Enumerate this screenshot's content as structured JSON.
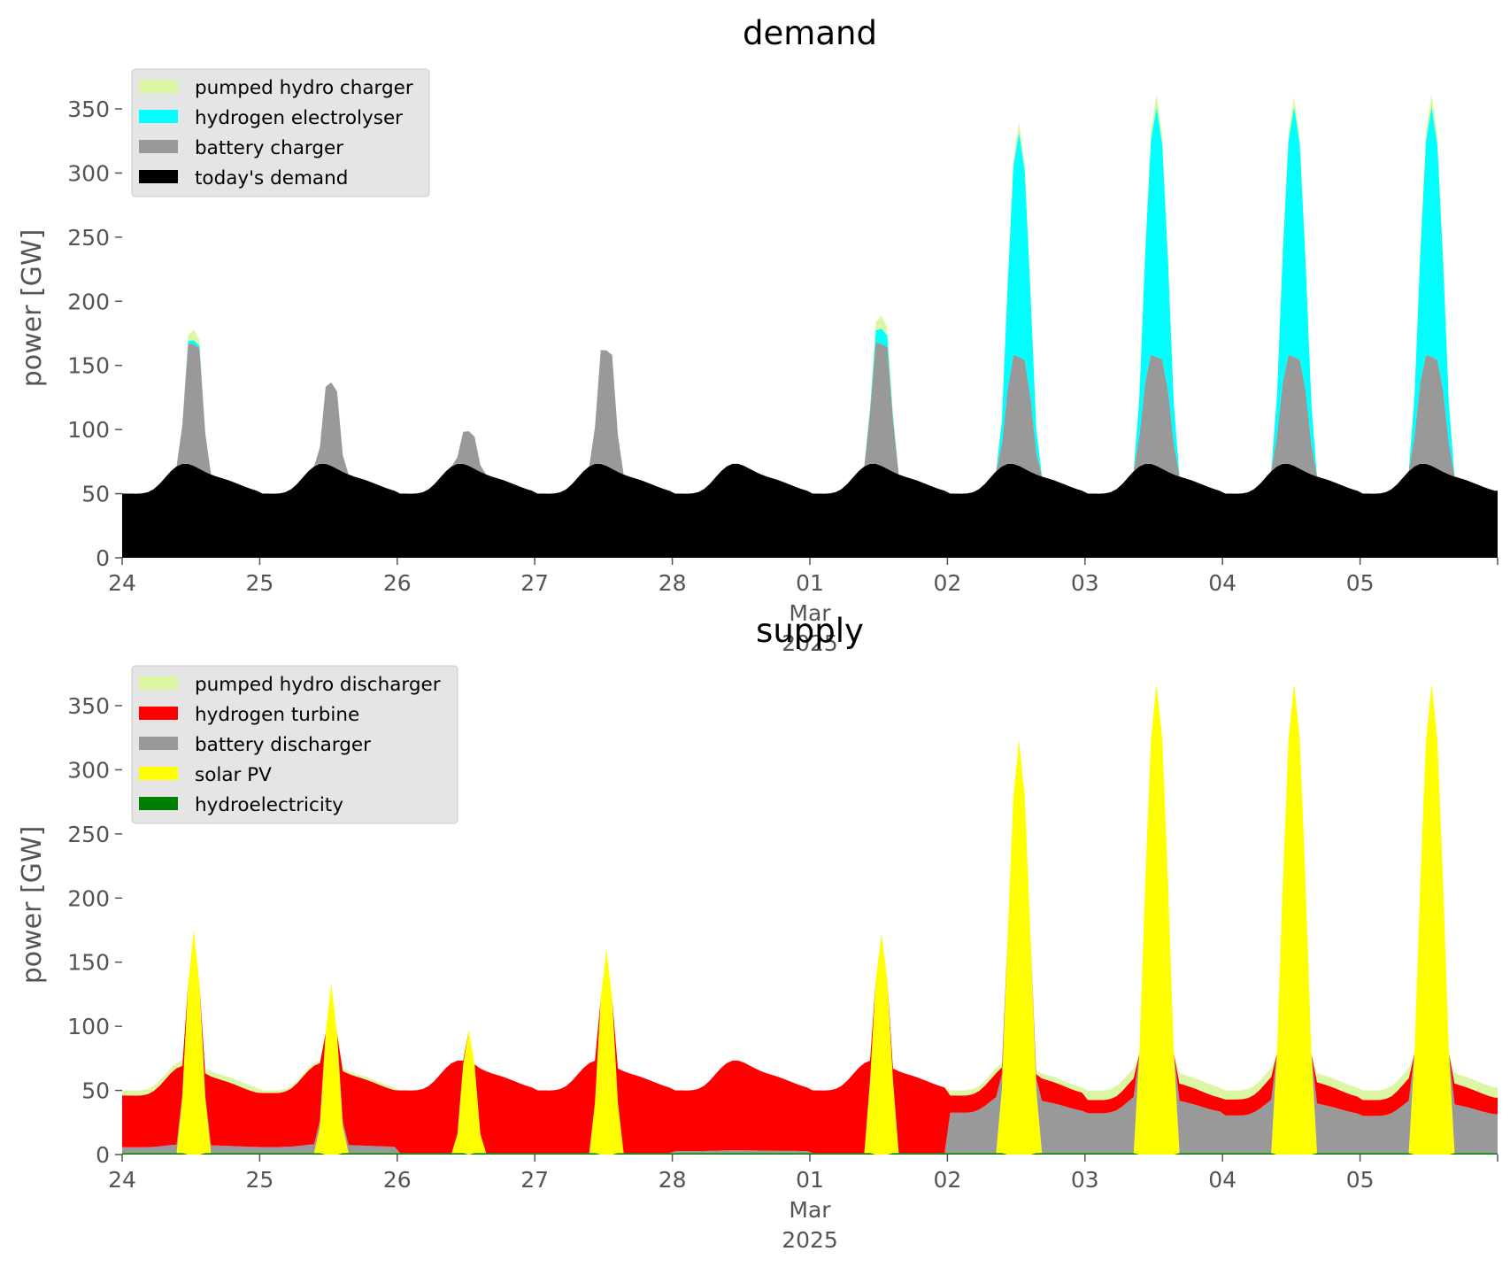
{
  "colors": {
    "pumped_hydro": "#dcf7a4",
    "hydrogen": "#00ffff",
    "battery": "#999999",
    "demand": "#000000",
    "turbine": "#ff0000",
    "solar": "#ffff00",
    "hydro": "#008000",
    "tick_text": "#555555",
    "legend_bg": "#e5e5e5"
  },
  "chart_data": [
    {
      "type": "area",
      "title": "demand",
      "ylabel": "power [GW]",
      "xlabel": "",
      "stacked": true,
      "ylim": [
        0,
        380
      ],
      "yticks": [
        0,
        50,
        100,
        150,
        200,
        250,
        300,
        350
      ],
      "xlim": [
        "2025-02-24T00:00",
        "2025-03-05T23:59"
      ],
      "xticks": [
        {
          "date": "2025-02-24",
          "label": "24"
        },
        {
          "date": "2025-02-25",
          "label": "25"
        },
        {
          "date": "2025-02-26",
          "label": "26"
        },
        {
          "date": "2025-02-27",
          "label": "27"
        },
        {
          "date": "2025-02-28",
          "label": "28"
        },
        {
          "date": "2025-03-01",
          "label": "01",
          "sublabels": [
            "Mar",
            "2025"
          ]
        },
        {
          "date": "2025-03-02",
          "label": "02"
        },
        {
          "date": "2025-03-03",
          "label": "03"
        },
        {
          "date": "2025-03-04",
          "label": "04"
        },
        {
          "date": "2025-03-05",
          "label": "05"
        }
      ],
      "legend_placement": "upper-left",
      "grid": false,
      "series": [
        {
          "name": "pumped hydro charger",
          "color": "#dcf7a4"
        },
        {
          "name": "hydrogen electrolyser",
          "color": "#00ffff"
        },
        {
          "name": "battery charger",
          "color": "#999999"
        },
        {
          "name": "today's demand",
          "color": "#000000"
        }
      ],
      "base_demand_profile": "diurnal GW curve, approx 48-73"
    },
    {
      "type": "area",
      "title": "supply",
      "ylabel": "power [GW]",
      "xlabel": "",
      "stacked": true,
      "ylim": [
        0,
        380
      ],
      "yticks": [
        0,
        50,
        100,
        150,
        200,
        250,
        300,
        350
      ],
      "xlim": [
        "2025-02-24T00:00",
        "2025-03-05T23:59"
      ],
      "xticks": [
        {
          "date": "2025-02-24",
          "label": "24"
        },
        {
          "date": "2025-02-25",
          "label": "25"
        },
        {
          "date": "2025-02-26",
          "label": "26"
        },
        {
          "date": "2025-02-27",
          "label": "27"
        },
        {
          "date": "2025-02-28",
          "label": "28"
        },
        {
          "date": "2025-03-01",
          "label": "01",
          "sublabels": [
            "Mar",
            "2025"
          ]
        },
        {
          "date": "2025-03-02",
          "label": "02"
        },
        {
          "date": "2025-03-03",
          "label": "03"
        },
        {
          "date": "2025-03-04",
          "label": "04"
        },
        {
          "date": "2025-03-05",
          "label": "05"
        }
      ],
      "legend_placement": "upper-left",
      "grid": false,
      "series": [
        {
          "name": "pumped hydro discharger",
          "color": "#dcf7a4"
        },
        {
          "name": "hydrogen turbine",
          "color": "#ff0000"
        },
        {
          "name": "battery discharger",
          "color": "#999999"
        },
        {
          "name": "solar PV",
          "color": "#ffff00"
        },
        {
          "name": "hydroelectricity",
          "color": "#008000"
        }
      ]
    }
  ],
  "daily": {
    "dates": [
      "2025-02-24",
      "2025-02-25",
      "2025-02-26",
      "2025-02-27",
      "2025-02-28",
      "2025-03-01",
      "2025-03-02",
      "2025-03-03",
      "2025-03-04",
      "2025-03-05"
    ],
    "solar_peak_gw": [
      175,
      133,
      97,
      160,
      0,
      172,
      323,
      367,
      367,
      367
    ],
    "solar_width_h": [
      5.5,
      5.0,
      5.0,
      5.5,
      0,
      6.0,
      7.5,
      8.0,
      8.0,
      8.0
    ],
    "battery_charge_peak_gw": [
      95,
      65,
      27,
      90,
      0,
      95,
      85,
      85,
      85,
      85
    ],
    "electrolyser_peak_gw": [
      3,
      0,
      0,
      0,
      0,
      12,
      175,
      195,
      195,
      195
    ],
    "pumped_charge_peak_gw": [
      8,
      0,
      0,
      0,
      0,
      10,
      8,
      10,
      8,
      10
    ],
    "pumped_discharge_night_gw": [
      4,
      2,
      0,
      0,
      0,
      0,
      4,
      8,
      7,
      8
    ],
    "turbine_share_night": [
      0.9,
      0.9,
      1.0,
      1.0,
      0.97,
      1.0,
      0.3,
      0.25,
      0.3,
      0.3
    ]
  }
}
